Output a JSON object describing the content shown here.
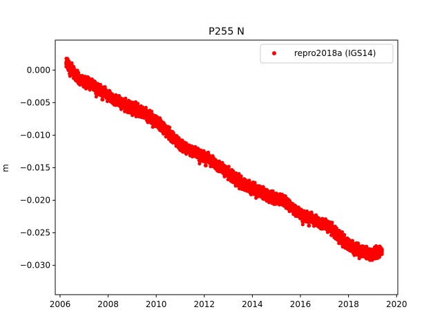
{
  "chart_data": {
    "type": "scatter",
    "title": "P255 N",
    "xlabel": "",
    "ylabel": "m",
    "xlim": [
      2005.8,
      2020.05
    ],
    "ylim": [
      -0.0345,
      0.0046
    ],
    "x_ticks": [
      "2006",
      "2008",
      "2010",
      "2012",
      "2014",
      "2016",
      "2018",
      "2020"
    ],
    "y_ticks": [
      "0.000",
      "−0.005",
      "−0.010",
      "−0.015",
      "−0.020",
      "−0.025",
      "−0.030"
    ],
    "grid": false,
    "legend_position": "top-right",
    "series": [
      {
        "name": "repro2018a (IGS14)",
        "color": "#ff0000",
        "marker": "circle",
        "trend": {
          "x": [
            2006.25,
            2006.8,
            2007.3,
            2008.0,
            2008.8,
            2009.5,
            2010.2,
            2011.0,
            2011.7,
            2012.3,
            2012.9,
            2013.5,
            2014.2,
            2014.9,
            2015.3,
            2016.0,
            2016.7,
            2017.2,
            2017.8,
            2018.3,
            2018.9,
            2019.4
          ],
          "y": [
            0.0012,
            -0.0015,
            -0.0022,
            -0.004,
            -0.0055,
            -0.0065,
            -0.0085,
            -0.0115,
            -0.0128,
            -0.014,
            -0.0155,
            -0.0172,
            -0.0185,
            -0.0197,
            -0.02,
            -0.0222,
            -0.0233,
            -0.024,
            -0.0262,
            -0.0275,
            -0.0283,
            -0.0278
          ]
        },
        "spread": 0.0011
      }
    ]
  }
}
